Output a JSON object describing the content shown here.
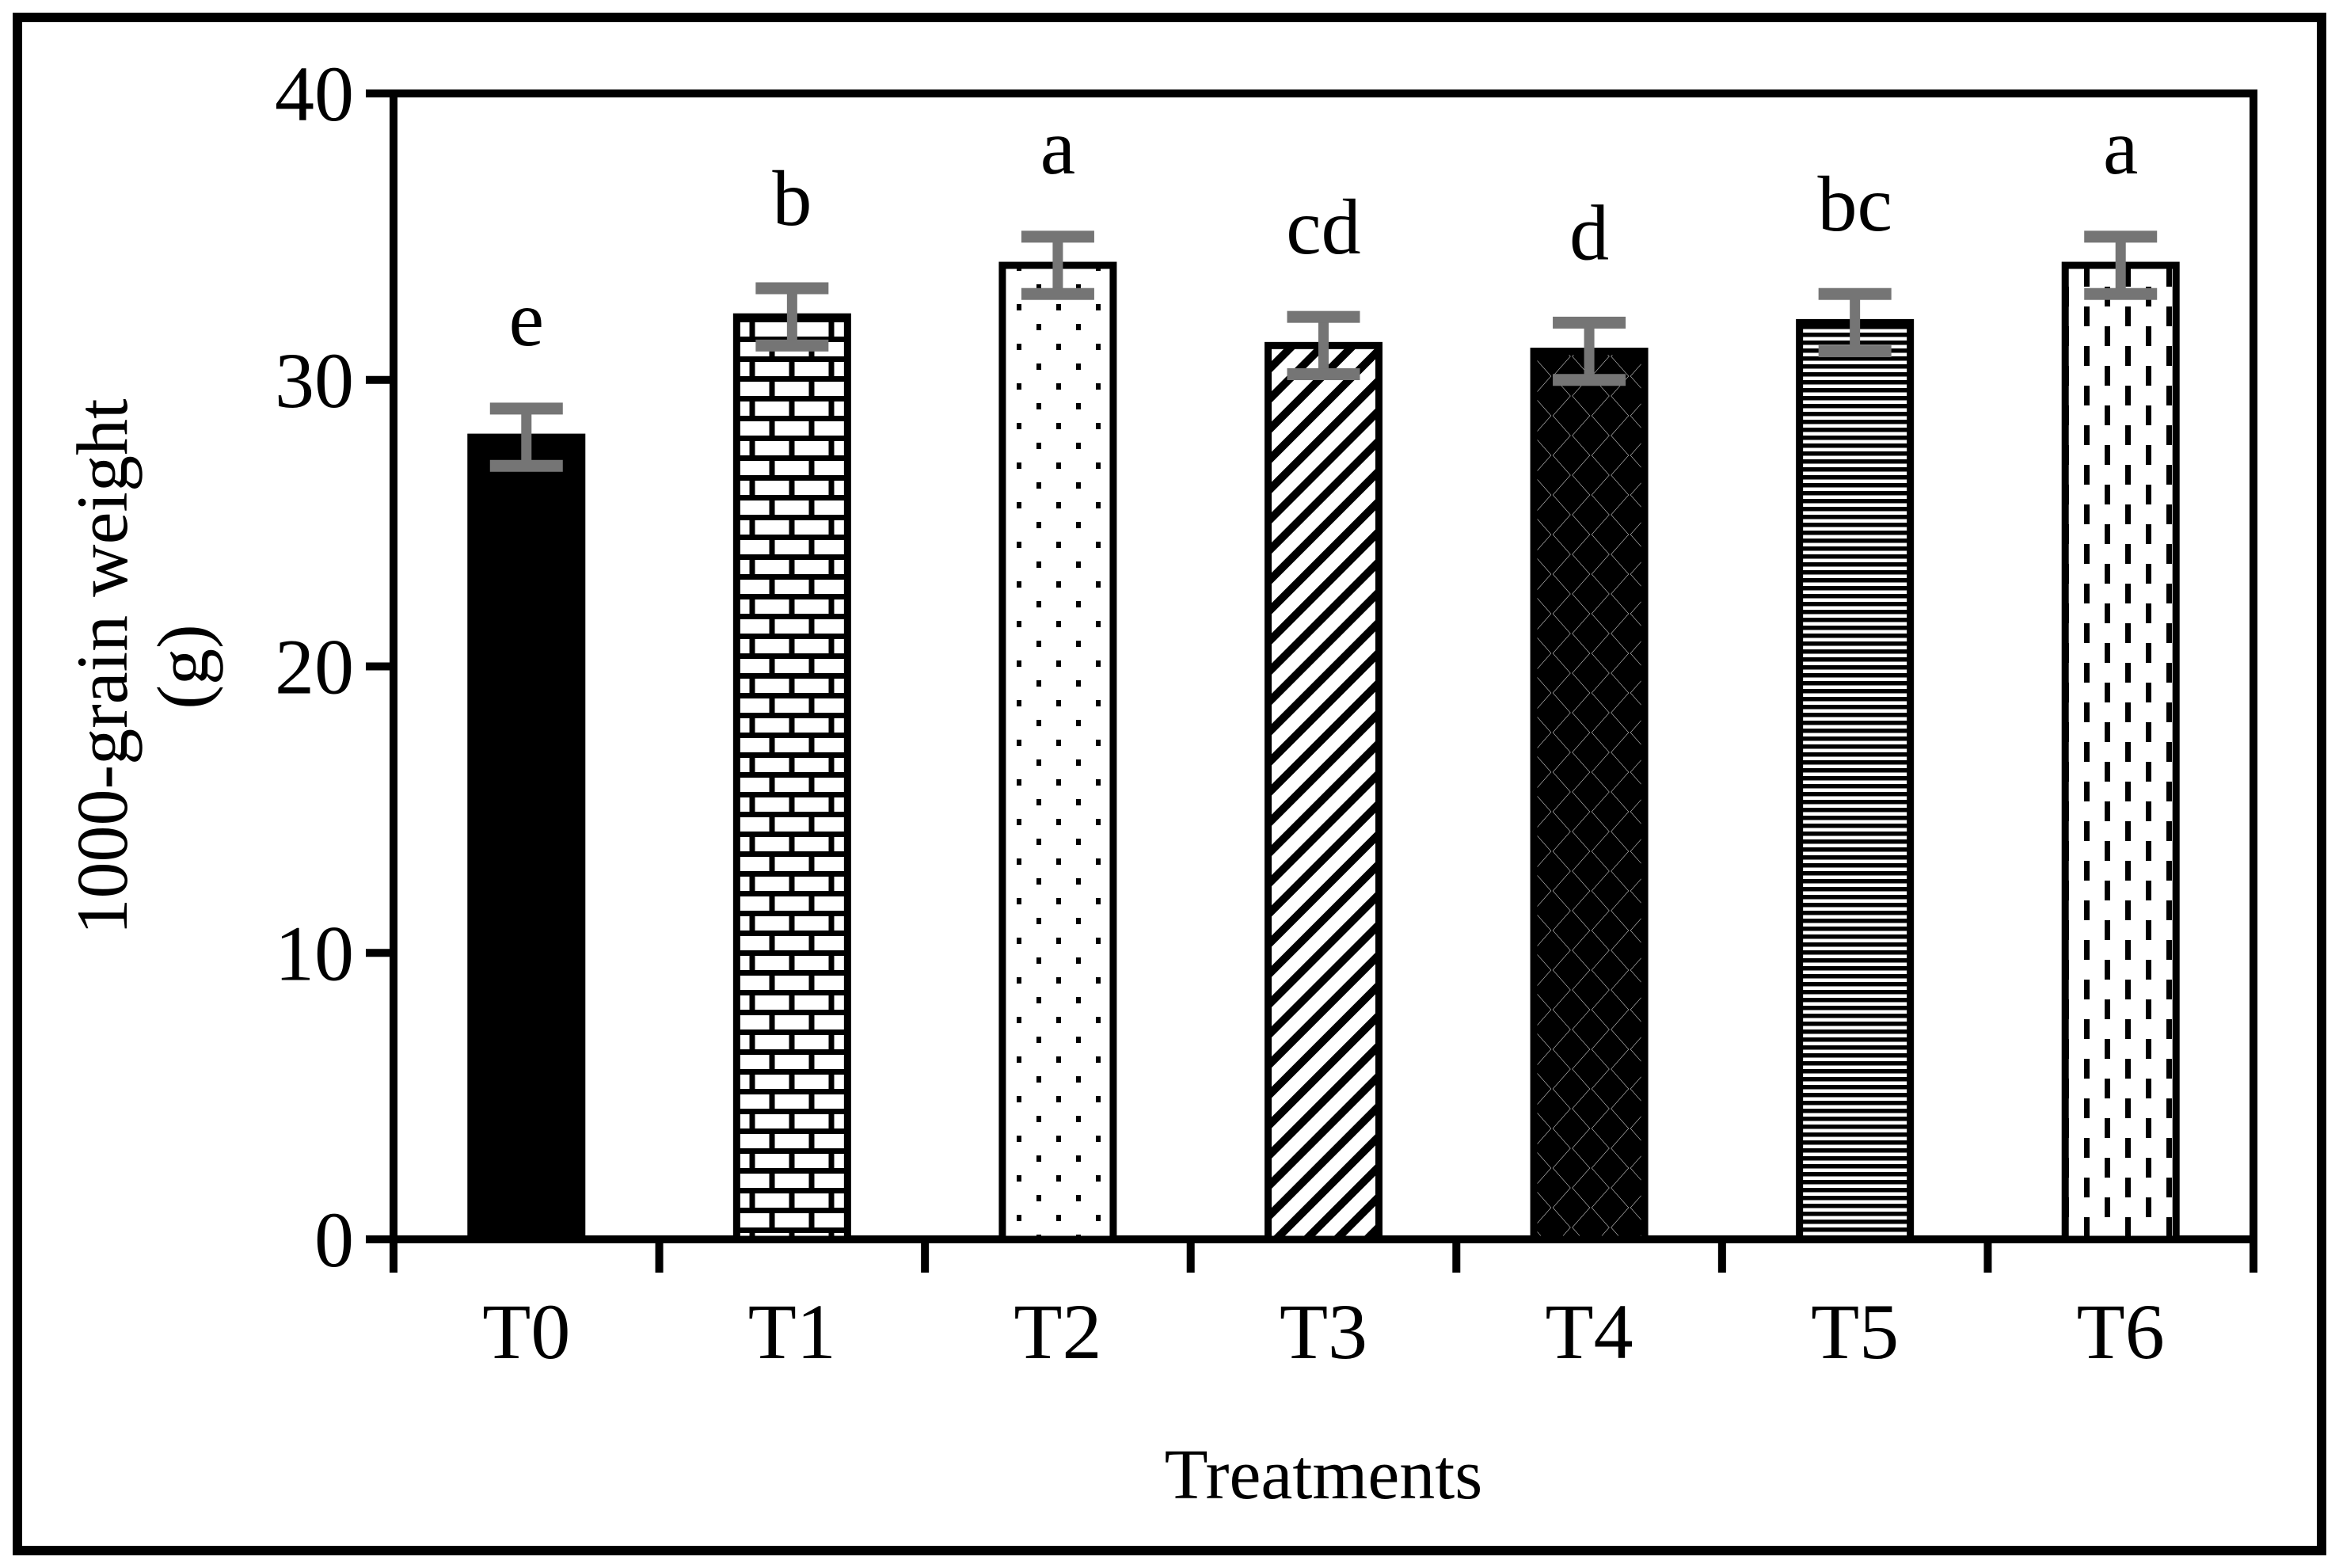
{
  "figure": {
    "background": "#ffffff",
    "border_color": "#000000"
  },
  "chart_data": {
    "type": "bar",
    "title": "",
    "categories": [
      "T0",
      "T1",
      "T2",
      "T3",
      "T4",
      "T5",
      "T6"
    ],
    "values": [
      28,
      32.2,
      34,
      31.2,
      31,
      32,
      34
    ],
    "error_bars": [
      1,
      1,
      1,
      1,
      1,
      1,
      1
    ],
    "significance_letters": [
      "e",
      "b",
      "a",
      "cd",
      "d",
      "bc",
      "a"
    ],
    "bar_patterns": [
      "solid",
      "brick",
      "dots",
      "diagonal-up",
      "diamonds",
      "horizontal-lines",
      "vertical-dashes"
    ],
    "xlabel": "Treatments",
    "ylabel": "1000-grain weight",
    "ylabel_unit": "(g)",
    "ylim": [
      0,
      40
    ],
    "yticks": [
      0,
      10,
      20,
      30,
      40
    ],
    "legend": "none",
    "grid": "off",
    "colors": {
      "bar_fill": "#000000",
      "bar_outline": "#000000",
      "error_bar": "#757575",
      "axis": "#000000",
      "background": "#ffffff",
      "text": "#000000"
    }
  }
}
